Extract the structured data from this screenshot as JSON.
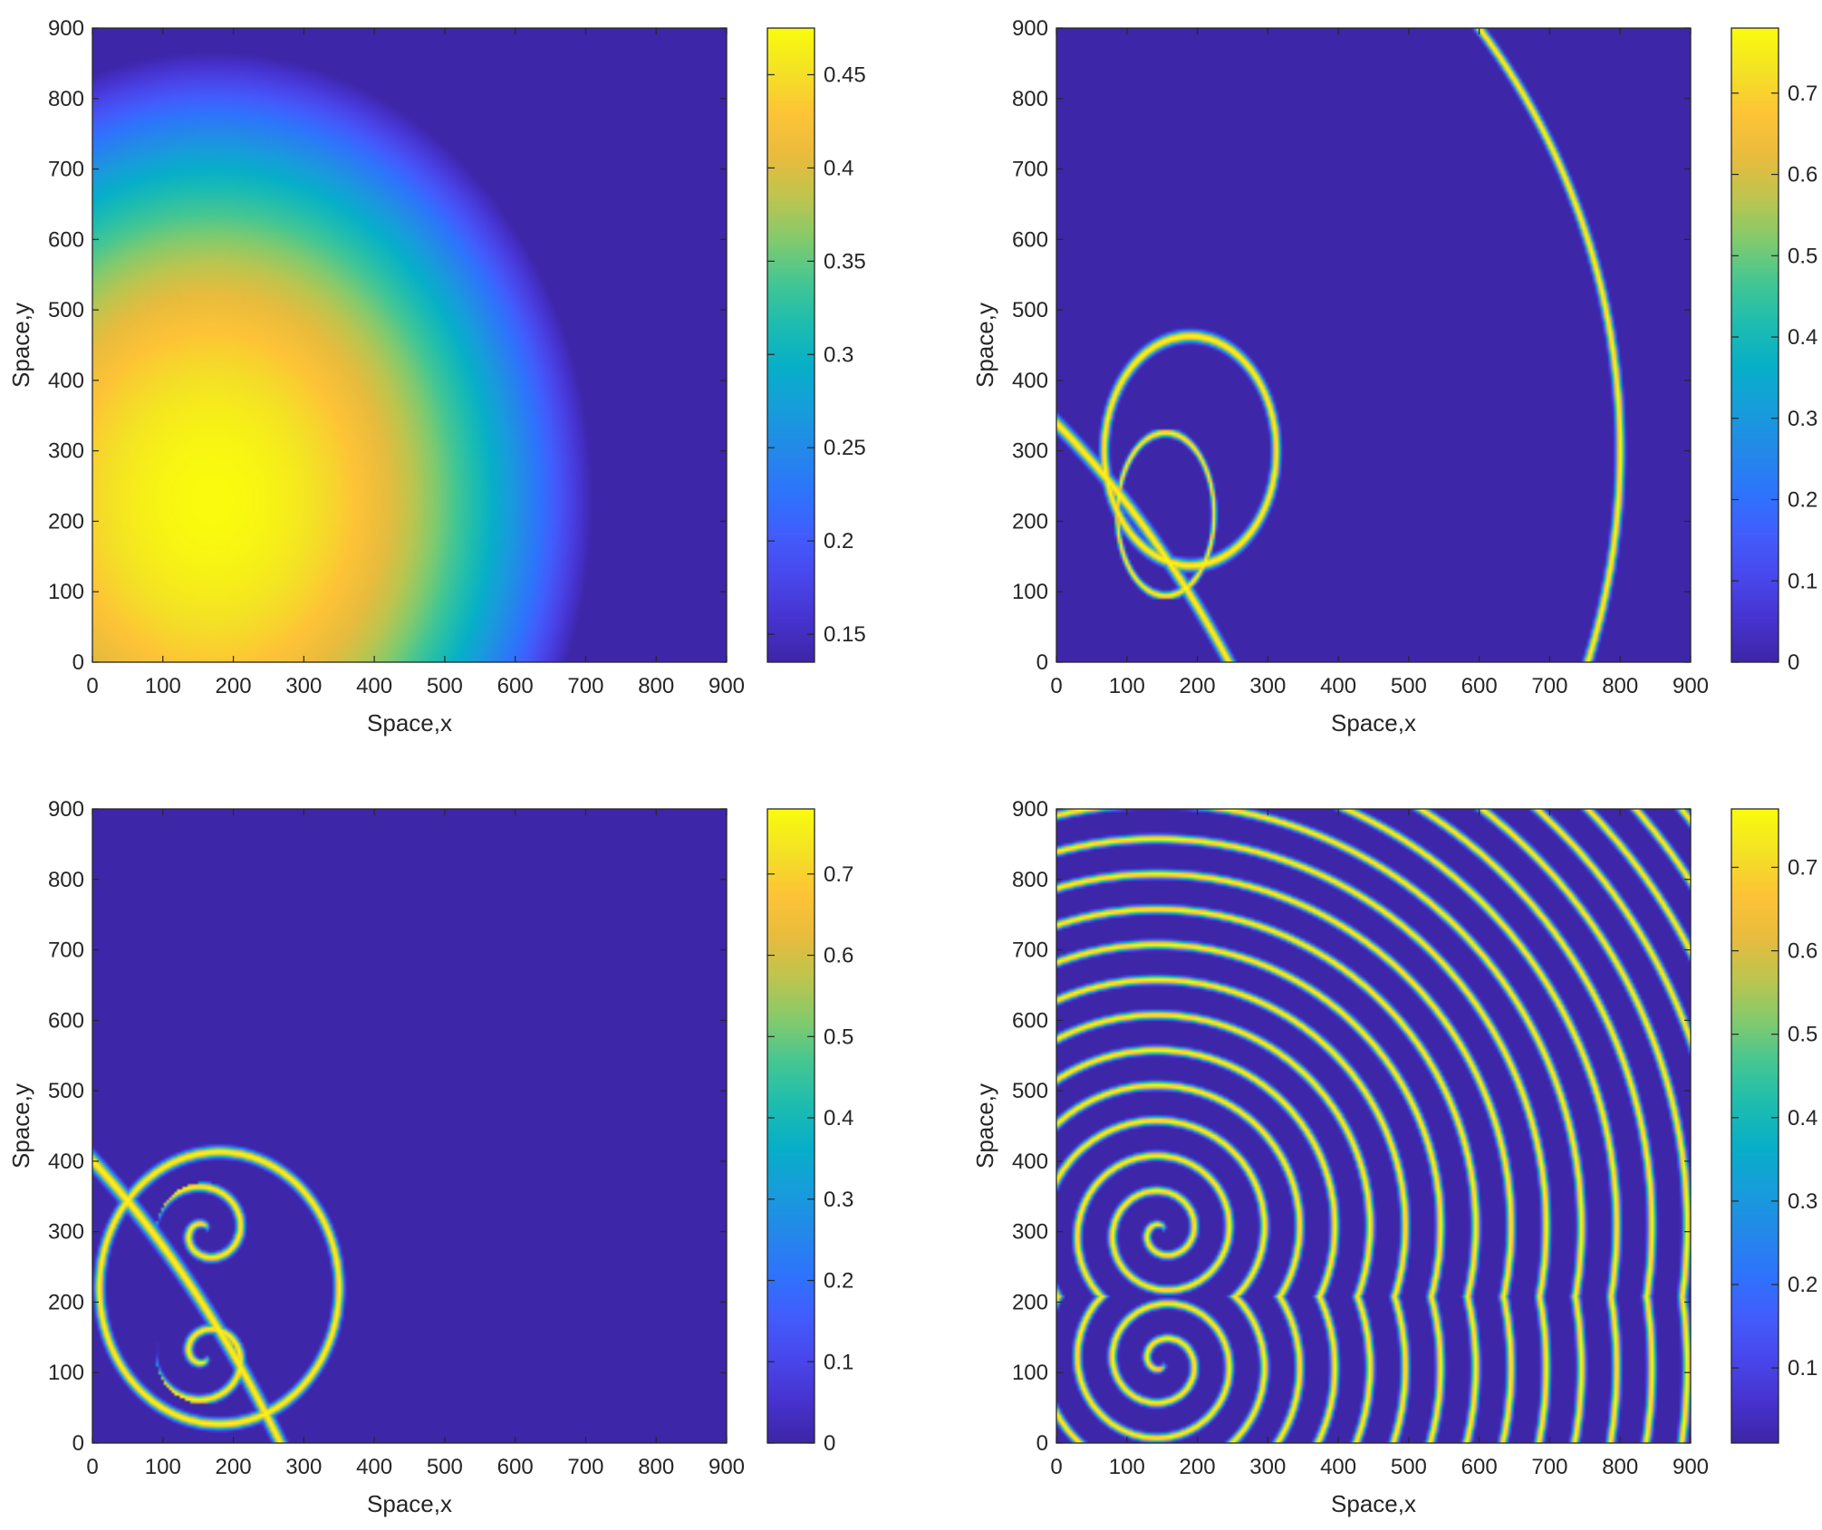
{
  "chart_data": [
    {
      "type": "heatmap",
      "pattern": "smooth-gradient",
      "xlabel": "Space,x",
      "ylabel": "Space,y",
      "xlim": [
        0,
        900
      ],
      "ylim": [
        0,
        900
      ],
      "xticks": [
        "0",
        "100",
        "200",
        "300",
        "400",
        "500",
        "600",
        "700",
        "800",
        "900"
      ],
      "yticks": [
        "0",
        "100",
        "200",
        "300",
        "400",
        "500",
        "600",
        "700",
        "800",
        "900"
      ],
      "colorbar": {
        "range": [
          0.135,
          0.475
        ],
        "ticks": [
          0.15,
          0.2,
          0.25,
          0.3,
          0.35,
          0.4,
          0.45
        ],
        "tick_labels": [
          "0.15",
          "0.2",
          "0.25",
          "0.3",
          "0.35",
          "0.4",
          "0.45"
        ]
      },
      "colormap": "parula"
    },
    {
      "type": "heatmap",
      "pattern": "early-waves",
      "xlabel": "Space,x",
      "ylabel": "Space,y",
      "xlim": [
        0,
        900
      ],
      "ylim": [
        0,
        900
      ],
      "xticks": [
        "0",
        "100",
        "200",
        "300",
        "400",
        "500",
        "600",
        "700",
        "800",
        "900"
      ],
      "yticks": [
        "0",
        "100",
        "200",
        "300",
        "400",
        "500",
        "600",
        "700",
        "800",
        "900"
      ],
      "colorbar": {
        "range": [
          0,
          0.78
        ],
        "ticks": [
          0,
          0.1,
          0.2,
          0.3,
          0.4,
          0.5,
          0.6,
          0.7
        ],
        "tick_labels": [
          "0",
          "0.1",
          "0.2",
          "0.3",
          "0.4",
          "0.5",
          "0.6",
          "0.7"
        ]
      },
      "colormap": "parula"
    },
    {
      "type": "heatmap",
      "pattern": "spiral-pair",
      "xlabel": "Space,x",
      "ylabel": "Space,y",
      "xlim": [
        0,
        900
      ],
      "ylim": [
        0,
        900
      ],
      "xticks": [
        "0",
        "100",
        "200",
        "300",
        "400",
        "500",
        "600",
        "700",
        "800",
        "900"
      ],
      "yticks": [
        "0",
        "100",
        "200",
        "300",
        "400",
        "500",
        "600",
        "700",
        "800",
        "900"
      ],
      "colorbar": {
        "range": [
          0,
          0.78
        ],
        "ticks": [
          0,
          0.1,
          0.2,
          0.3,
          0.4,
          0.5,
          0.6,
          0.7
        ],
        "tick_labels": [
          "0",
          "0.1",
          "0.2",
          "0.3",
          "0.4",
          "0.5",
          "0.6",
          "0.7"
        ]
      },
      "colormap": "parula"
    },
    {
      "type": "heatmap",
      "pattern": "developed-spiral-waves",
      "xlabel": "Space,x",
      "ylabel": "Space,y",
      "xlim": [
        0,
        900
      ],
      "ylim": [
        0,
        900
      ],
      "xticks": [
        "0",
        "100",
        "200",
        "300",
        "400",
        "500",
        "600",
        "700",
        "800",
        "900"
      ],
      "yticks": [
        "0",
        "100",
        "200",
        "300",
        "400",
        "500",
        "600",
        "700",
        "800",
        "900"
      ],
      "colorbar": {
        "range": [
          0.01,
          0.77
        ],
        "ticks": [
          0.1,
          0.2,
          0.3,
          0.4,
          0.5,
          0.6,
          0.7
        ],
        "tick_labels": [
          "0.1",
          "0.2",
          "0.3",
          "0.4",
          "0.5",
          "0.6",
          "0.7"
        ]
      },
      "colormap": "parula"
    }
  ]
}
